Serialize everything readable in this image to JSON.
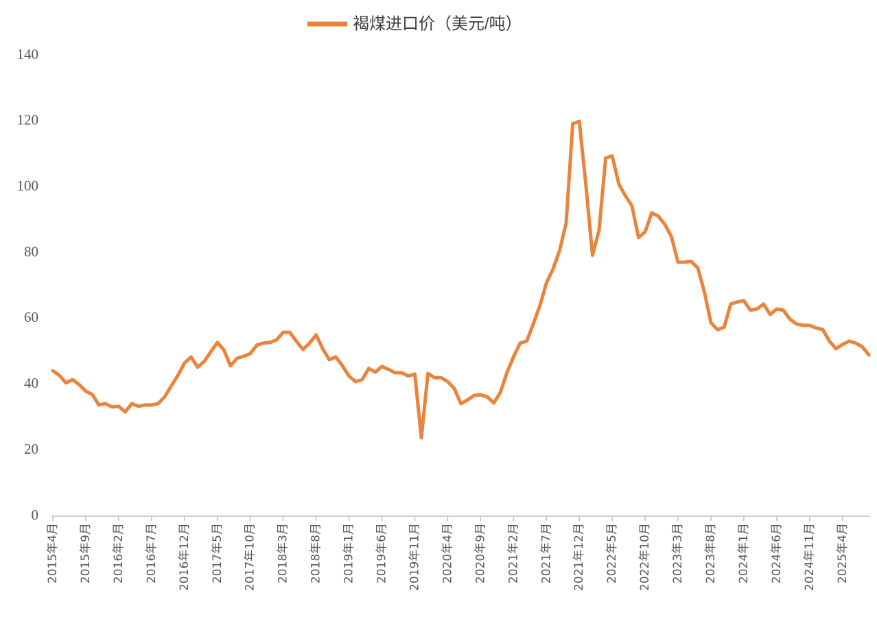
{
  "chart_data": {
    "type": "line",
    "categories": [
      "2015年4月",
      null,
      null,
      null,
      null,
      "2015年9月",
      null,
      null,
      null,
      null,
      "2016年2月",
      null,
      null,
      null,
      null,
      "2016年7月",
      null,
      null,
      null,
      null,
      "2016年12月",
      null,
      null,
      null,
      null,
      "2017年5月",
      null,
      null,
      null,
      null,
      "2017年10月",
      null,
      null,
      null,
      null,
      "2018年3月",
      null,
      null,
      null,
      null,
      "2018年8月",
      null,
      null,
      null,
      null,
      "2019年1月",
      null,
      null,
      null,
      null,
      "2019年6月",
      null,
      null,
      null,
      null,
      "2019年11月",
      null,
      null,
      null,
      null,
      "2020年4月",
      null,
      null,
      null,
      null,
      "2020年9月",
      null,
      null,
      null,
      null,
      "2021年2月",
      null,
      null,
      null,
      null,
      "2021年7月",
      null,
      null,
      null,
      null,
      "2021年12月",
      null,
      null,
      null,
      null,
      "2022年5月",
      null,
      null,
      null,
      null,
      "2022年10月",
      null,
      null,
      null,
      null,
      "2023年3月",
      null,
      null,
      null,
      null,
      "2023年8月",
      null,
      null,
      null,
      null,
      "2024年1月",
      null,
      null,
      null,
      null,
      "2024年6月",
      null,
      null,
      null,
      null,
      "2024年11月",
      null,
      null,
      null,
      null,
      "2025年4月",
      null,
      null,
      null,
      null
    ],
    "series": [
      {
        "name": "褐煤进口价（美元/吨）",
        "color": "#e8843c",
        "values": [
          44.2,
          42.8,
          40.5,
          41.5,
          40,
          38,
          37,
          33.8,
          34.2,
          33.2,
          33.4,
          31.7,
          34.2,
          33.4,
          33.8,
          33.8,
          34.2,
          36.3,
          39.6,
          42.8,
          46.5,
          48.4,
          45.3,
          47,
          50,
          52.8,
          50.5,
          45.7,
          48,
          48.6,
          49.4,
          52,
          52.6,
          52.8,
          53.6,
          55.9,
          55.9,
          53.2,
          50.7,
          52.6,
          55.1,
          50.9,
          47.6,
          48.4,
          45.7,
          42.6,
          40.9,
          41.5,
          44.9,
          43.8,
          45.5,
          44.6,
          43.6,
          43.6,
          42.6,
          43.2,
          23.8,
          43.4,
          42.1,
          42.1,
          40.9,
          38.8,
          34.2,
          35.3,
          36.7,
          36.9,
          36.3,
          34.4,
          37.6,
          43.6,
          48.4,
          52.6,
          53.2,
          58.4,
          64,
          70.9,
          75.1,
          80.7,
          89.1,
          119.3,
          120,
          100.6,
          79.3,
          87,
          108.9,
          109.5,
          101,
          97.4,
          94.3,
          84.7,
          86.4,
          92.2,
          91.2,
          88.7,
          84.9,
          77.2,
          77.2,
          77.4,
          75.5,
          68.2,
          58.8,
          56.7,
          57.4,
          64.5,
          65.1,
          65.5,
          62.6,
          63,
          64.5,
          61.3,
          63,
          62.6,
          59.9,
          58.4,
          58,
          58,
          57.2,
          56.7,
          53.2,
          50.9,
          52.2,
          53.2,
          52.6,
          51.5,
          49
        ]
      }
    ],
    "ylim": [
      0,
      140
    ],
    "yticks": [
      0,
      20,
      40,
      60,
      80,
      100,
      120,
      140
    ],
    "grid": false,
    "legend": "top"
  }
}
